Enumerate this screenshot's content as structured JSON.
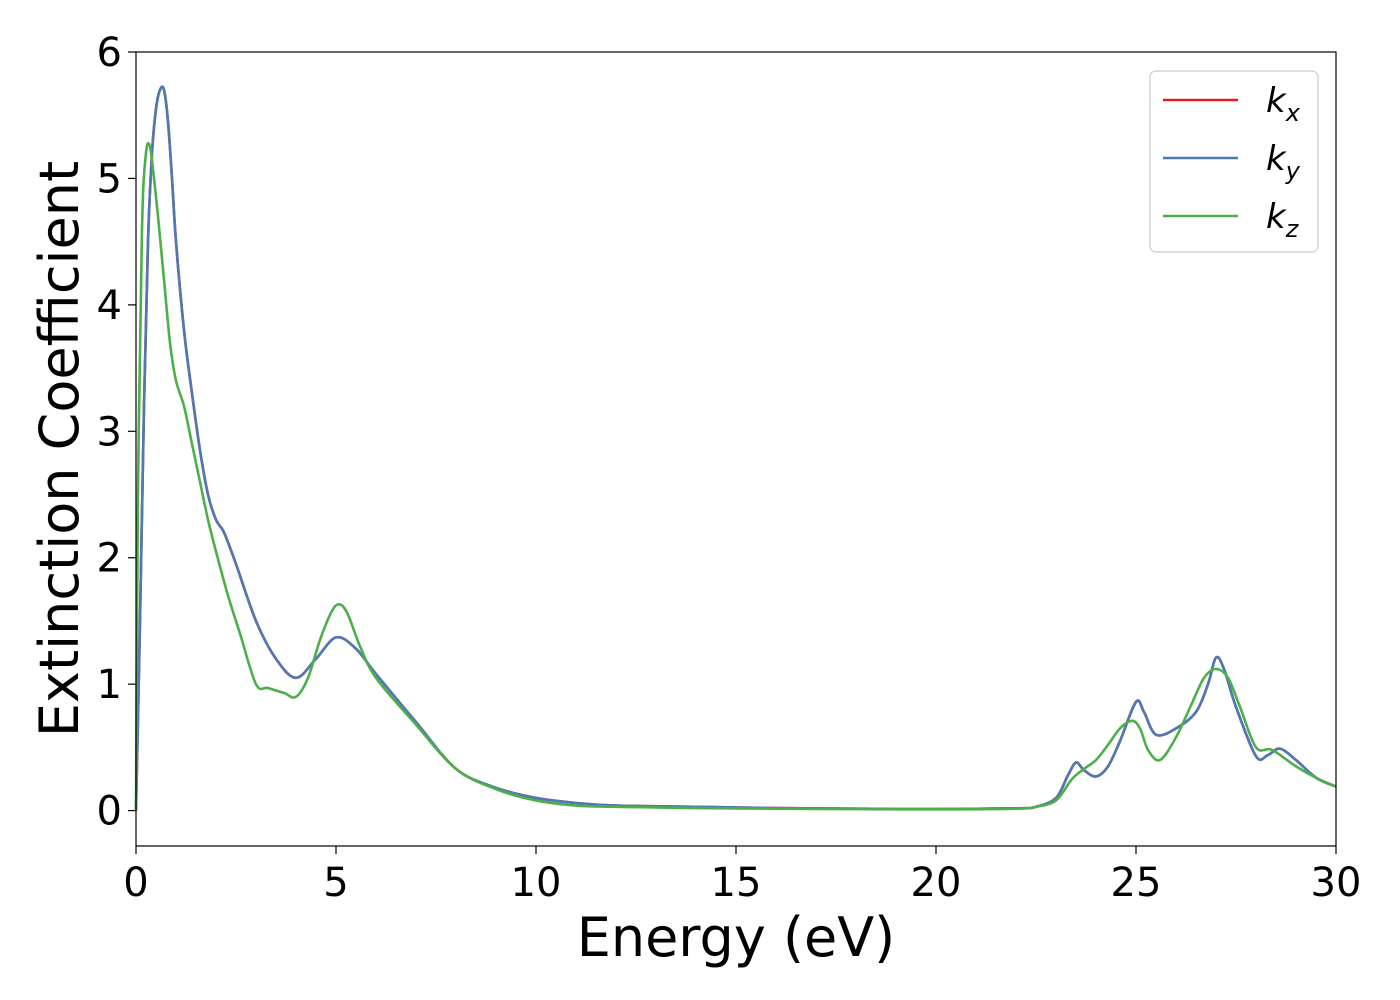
{
  "chart_data": {
    "type": "line",
    "title": "",
    "xlabel": "Energy (eV)",
    "ylabel": "Extinction Coefficient",
    "xlim": [
      0,
      30
    ],
    "ylim": [
      -0.28,
      6.0
    ],
    "xticks": [
      0,
      5,
      10,
      15,
      20,
      25,
      30
    ],
    "yticks": [
      0,
      1,
      2,
      3,
      4,
      5,
      6
    ],
    "xtick_labels": [
      "0",
      "5",
      "10",
      "15",
      "20",
      "25",
      "30"
    ],
    "ytick_labels": [
      "0",
      "1",
      "2",
      "3",
      "4",
      "5",
      "6"
    ],
    "grid": false,
    "legend_position": "top-right",
    "series": [
      {
        "name": "k_x",
        "label_base": "k",
        "label_sub": "x",
        "color": "#e41a1c",
        "x": [
          0,
          0.1,
          0.2,
          0.3,
          0.4,
          0.5,
          0.6,
          0.7,
          0.8,
          0.9,
          1.0,
          1.2,
          1.4,
          1.6,
          1.8,
          2.0,
          2.2,
          2.5,
          3.0,
          3.5,
          4.0,
          4.5,
          5.0,
          5.5,
          6.0,
          7.0,
          8.0,
          9.0,
          10.0,
          11.0,
          12.0,
          14.0,
          16.0,
          18.0,
          20.0,
          22.0,
          22.5,
          23.0,
          23.3,
          23.5,
          23.7,
          24.0,
          24.3,
          24.6,
          25.0,
          25.2,
          25.5,
          26.0,
          26.5,
          26.8,
          27.0,
          27.2,
          27.5,
          28.0,
          28.3,
          28.6,
          29.0,
          29.5,
          30.0
        ],
        "y": [
          0.0,
          1.5,
          3.2,
          4.5,
          5.2,
          5.55,
          5.7,
          5.7,
          5.45,
          5.0,
          4.5,
          3.8,
          3.3,
          2.85,
          2.5,
          2.3,
          2.2,
          1.95,
          1.5,
          1.2,
          1.05,
          1.2,
          1.37,
          1.28,
          1.08,
          0.7,
          0.33,
          0.18,
          0.1,
          0.06,
          0.04,
          0.03,
          0.02,
          0.015,
          0.012,
          0.018,
          0.03,
          0.1,
          0.28,
          0.38,
          0.32,
          0.27,
          0.35,
          0.55,
          0.86,
          0.78,
          0.6,
          0.65,
          0.78,
          1.0,
          1.21,
          1.12,
          0.82,
          0.43,
          0.44,
          0.49,
          0.4,
          0.26,
          0.19
        ]
      },
      {
        "name": "k_y",
        "label_base": "k",
        "label_sub": "y",
        "color": "#4e79b3",
        "x": [
          0,
          0.1,
          0.2,
          0.3,
          0.4,
          0.5,
          0.6,
          0.7,
          0.8,
          0.9,
          1.0,
          1.2,
          1.4,
          1.6,
          1.8,
          2.0,
          2.2,
          2.5,
          3.0,
          3.5,
          4.0,
          4.5,
          5.0,
          5.5,
          6.0,
          7.0,
          8.0,
          9.0,
          10.0,
          11.0,
          12.0,
          14.0,
          16.0,
          18.0,
          20.0,
          22.0,
          22.5,
          23.0,
          23.3,
          23.5,
          23.7,
          24.0,
          24.3,
          24.6,
          25.0,
          25.2,
          25.5,
          26.0,
          26.5,
          26.8,
          27.0,
          27.2,
          27.5,
          28.0,
          28.3,
          28.6,
          29.0,
          29.5,
          30.0
        ],
        "y": [
          0.0,
          1.5,
          3.2,
          4.5,
          5.2,
          5.55,
          5.7,
          5.7,
          5.45,
          5.0,
          4.5,
          3.8,
          3.3,
          2.85,
          2.5,
          2.3,
          2.2,
          1.95,
          1.5,
          1.2,
          1.05,
          1.2,
          1.37,
          1.28,
          1.08,
          0.7,
          0.33,
          0.18,
          0.1,
          0.06,
          0.04,
          0.03,
          0.02,
          0.015,
          0.012,
          0.018,
          0.03,
          0.1,
          0.28,
          0.38,
          0.32,
          0.27,
          0.35,
          0.55,
          0.86,
          0.78,
          0.6,
          0.65,
          0.78,
          1.0,
          1.21,
          1.12,
          0.82,
          0.43,
          0.44,
          0.49,
          0.4,
          0.26,
          0.19
        ]
      },
      {
        "name": "k_z",
        "label_base": "k",
        "label_sub": "z",
        "color": "#4daf4a",
        "x": [
          0,
          0.05,
          0.15,
          0.25,
          0.35,
          0.45,
          0.55,
          0.7,
          0.85,
          1.0,
          1.2,
          1.4,
          1.6,
          1.8,
          2.0,
          2.3,
          2.6,
          3.0,
          3.3,
          3.7,
          4.0,
          4.3,
          4.6,
          4.9,
          5.1,
          5.3,
          5.6,
          6.0,
          7.0,
          8.0,
          9.0,
          10.0,
          11.0,
          12.0,
          14.0,
          16.0,
          18.0,
          20.0,
          22.0,
          22.5,
          23.0,
          23.4,
          23.7,
          24.0,
          24.3,
          24.6,
          24.9,
          25.1,
          25.3,
          25.6,
          26.0,
          26.4,
          26.7,
          27.0,
          27.3,
          27.6,
          28.0,
          28.4,
          29.0,
          29.5,
          30.0
        ],
        "y": [
          0.0,
          2.5,
          4.6,
          5.2,
          5.25,
          5.0,
          4.7,
          4.2,
          3.7,
          3.4,
          3.2,
          2.9,
          2.6,
          2.3,
          2.05,
          1.7,
          1.4,
          1.0,
          0.97,
          0.93,
          0.9,
          1.05,
          1.35,
          1.58,
          1.63,
          1.55,
          1.3,
          1.05,
          0.68,
          0.33,
          0.17,
          0.08,
          0.04,
          0.03,
          0.02,
          0.015,
          0.012,
          0.01,
          0.015,
          0.03,
          0.08,
          0.25,
          0.33,
          0.4,
          0.52,
          0.65,
          0.71,
          0.65,
          0.48,
          0.4,
          0.58,
          0.85,
          1.05,
          1.12,
          1.05,
          0.82,
          0.5,
          0.48,
          0.35,
          0.26,
          0.19
        ]
      }
    ]
  }
}
